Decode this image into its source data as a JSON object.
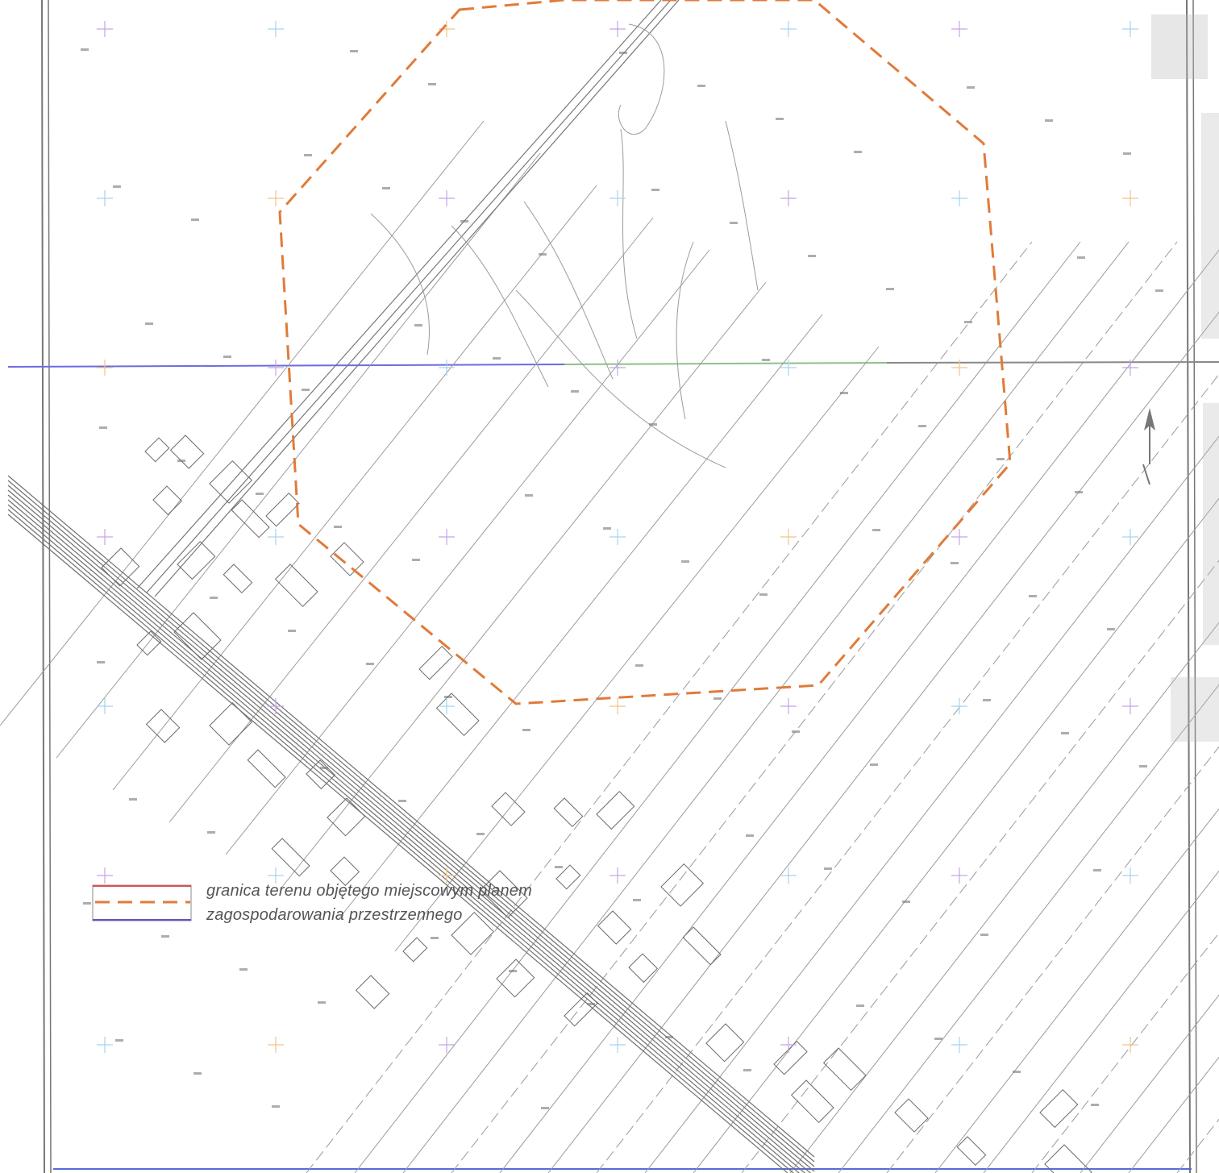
{
  "map": {
    "legend": {
      "line1": "granica terenu  objętego  miejscowym planem",
      "line2": "zagospodarowania przestrzennego",
      "swatch_colors": {
        "top": "#d9534f",
        "dash": "#e07b39",
        "bottom": "#6a4fc9"
      }
    },
    "boundary_color": "#e07b39",
    "north_arrow_icon": "north-arrow-icon"
  }
}
